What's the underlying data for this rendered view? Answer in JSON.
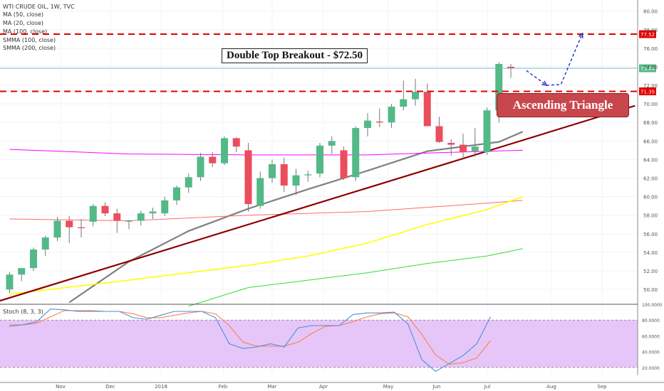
{
  "header": {
    "symbol": "WTI CRUDE OIL, 1W, TVC",
    "indicators": [
      "MA (50, close)",
      "MA (20, close)",
      "MA (100, close)",
      "SMMA (100, close)",
      "SMMA (200, close)"
    ]
  },
  "annotations": {
    "breakout": "Double Top Breakout - $72.50",
    "pattern": "Ascending Triangle"
  },
  "colors": {
    "up": "#53b987",
    "down": "#eb4d5c",
    "resistance": "#e00000",
    "trendline": "#8b0000",
    "projection": "#1f2fbf",
    "stoch_band": "#e6c6f8",
    "ma50": "#ff00ff",
    "ma20": "#808080",
    "ma100": "#ff6b6b",
    "smma100": "#ffff00",
    "smma200": "#33dd33",
    "stoch_k": "#4a90d9",
    "stoch_d": "#ff7f50"
  },
  "chart_data": {
    "type": "candlestick",
    "title": "WTI CRUDE OIL, 1W, TVC",
    "y_ticks": [
      "80.00",
      "78.00",
      "76.00",
      "74.00",
      "72.00",
      "70.00",
      "68.00",
      "66.00",
      "64.00",
      "62.00",
      "60.00",
      "58.00",
      "56.00",
      "54.00",
      "52.00",
      "50.00"
    ],
    "ylim": [
      48.4,
      81.2
    ],
    "x_labels": [
      "Nov",
      "Dec",
      "2018",
      "Feb",
      "Mar",
      "Apr",
      "May",
      "Jun",
      "Jul",
      "Aug",
      "Sep"
    ],
    "price_labels": [
      "77.52",
      "73.84",
      "71.35"
    ],
    "resistance_levels": [
      77.52,
      71.35
    ],
    "last_price": 73.84,
    "candles": [
      {
        "o": 50.0,
        "h": 51.9,
        "l": 49.6,
        "c": 51.6
      },
      {
        "o": 51.6,
        "h": 52.1,
        "l": 50.9,
        "c": 52.3
      },
      {
        "o": 52.3,
        "h": 54.5,
        "l": 52.0,
        "c": 54.3
      },
      {
        "o": 54.3,
        "h": 55.8,
        "l": 53.6,
        "c": 55.6
      },
      {
        "o": 55.6,
        "h": 57.8,
        "l": 55.2,
        "c": 57.4
      },
      {
        "o": 57.4,
        "h": 57.9,
        "l": 55.0,
        "c": 56.7
      },
      {
        "o": 56.7,
        "h": 57.6,
        "l": 55.6,
        "c": 56.6
      },
      {
        "o": 57.3,
        "h": 59.2,
        "l": 56.8,
        "c": 59.0
      },
      {
        "o": 59.0,
        "h": 59.4,
        "l": 57.9,
        "c": 58.2
      },
      {
        "o": 58.2,
        "h": 58.7,
        "l": 56.1,
        "c": 57.4
      },
      {
        "o": 57.3,
        "h": 57.5,
        "l": 56.5,
        "c": 57.4
      },
      {
        "o": 57.4,
        "h": 58.5,
        "l": 56.9,
        "c": 58.2
      },
      {
        "o": 58.2,
        "h": 58.8,
        "l": 57.6,
        "c": 58.4
      },
      {
        "o": 58.2,
        "h": 60.0,
        "l": 57.9,
        "c": 59.6
      },
      {
        "o": 59.6,
        "h": 61.2,
        "l": 59.1,
        "c": 61.0
      },
      {
        "o": 61.0,
        "h": 62.5,
        "l": 60.4,
        "c": 62.1
      },
      {
        "o": 62.1,
        "h": 64.7,
        "l": 61.7,
        "c": 64.3
      },
      {
        "o": 64.3,
        "h": 64.8,
        "l": 63.2,
        "c": 63.6
      },
      {
        "o": 63.6,
        "h": 66.5,
        "l": 63.4,
        "c": 66.3
      },
      {
        "o": 66.3,
        "h": 66.4,
        "l": 64.8,
        "c": 65.4
      },
      {
        "o": 65.0,
        "h": 65.8,
        "l": 58.4,
        "c": 59.2
      },
      {
        "o": 59.0,
        "h": 62.7,
        "l": 58.7,
        "c": 62.0
      },
      {
        "o": 62.0,
        "h": 64.0,
        "l": 61.5,
        "c": 63.5
      },
      {
        "o": 63.5,
        "h": 64.2,
        "l": 60.5,
        "c": 61.2
      },
      {
        "o": 61.2,
        "h": 63.0,
        "l": 60.2,
        "c": 62.3
      },
      {
        "o": 62.3,
        "h": 62.8,
        "l": 61.6,
        "c": 62.4
      },
      {
        "o": 62.5,
        "h": 65.8,
        "l": 62.1,
        "c": 65.5
      },
      {
        "o": 65.5,
        "h": 66.5,
        "l": 64.6,
        "c": 66.0
      },
      {
        "o": 65.0,
        "h": 65.4,
        "l": 61.8,
        "c": 62.0
      },
      {
        "o": 62.1,
        "h": 67.6,
        "l": 61.7,
        "c": 67.4
      },
      {
        "o": 67.4,
        "h": 69.0,
        "l": 66.5,
        "c": 68.2
      },
      {
        "o": 68.1,
        "h": 69.5,
        "l": 67.5,
        "c": 68.0
      },
      {
        "o": 68.0,
        "h": 70.0,
        "l": 67.4,
        "c": 69.7
      },
      {
        "o": 69.7,
        "h": 72.5,
        "l": 69.3,
        "c": 70.5
      },
      {
        "o": 70.5,
        "h": 72.7,
        "l": 69.8,
        "c": 71.3
      },
      {
        "o": 71.3,
        "h": 72.2,
        "l": 67.7,
        "c": 67.6
      },
      {
        "o": 67.6,
        "h": 68.6,
        "l": 65.8,
        "c": 65.9
      },
      {
        "o": 65.8,
        "h": 66.2,
        "l": 64.4,
        "c": 65.6
      },
      {
        "o": 65.6,
        "h": 66.8,
        "l": 64.1,
        "c": 64.8
      },
      {
        "o": 64.9,
        "h": 67.4,
        "l": 64.3,
        "c": 65.4
      },
      {
        "o": 64.8,
        "h": 69.6,
        "l": 64.5,
        "c": 69.3
      },
      {
        "o": 69.3,
        "h": 74.5,
        "l": 68.0,
        "c": 74.3
      },
      {
        "o": 74.0,
        "h": 74.3,
        "l": 72.8,
        "c": 73.84
      }
    ],
    "moving_averages": [
      {
        "name": "MA (20, close)",
        "x": [
          5,
          10,
          15,
          20,
          25,
          30,
          35,
          38,
          41,
          43
        ],
        "y": [
          48.6,
          53.0,
          56.3,
          58.7,
          60.8,
          62.8,
          64.9,
          65.4,
          65.9,
          67.0
        ]
      },
      {
        "name": "MA (50, close)",
        "x": [
          0,
          10,
          20,
          30,
          40,
          43
        ],
        "y": [
          65.1,
          64.6,
          64.5,
          64.5,
          64.9,
          65.0
        ]
      },
      {
        "name": "MA (100, close)",
        "x": [
          0,
          10,
          20,
          30,
          40,
          43
        ],
        "y": [
          57.6,
          57.4,
          58.0,
          58.4,
          59.3,
          59.6
        ]
      },
      {
        "name": "SMMA (100, close)",
        "x": [
          0,
          10,
          20,
          25,
          30,
          35,
          40,
          43
        ],
        "y": [
          49.5,
          51.0,
          52.6,
          53.6,
          55.0,
          57.0,
          58.6,
          60.0
        ]
      },
      {
        "name": "SMMA (200, close)",
        "x": [
          15,
          20,
          25,
          30,
          35,
          40,
          43
        ],
        "y": [
          48.2,
          50.2,
          51.0,
          51.8,
          52.8,
          53.6,
          54.4
        ]
      }
    ],
    "stochastic": {
      "label": "Stoch (8, 3, 3)",
      "ylim": [
        10,
        100
      ],
      "y_ticks": [
        "100.0000",
        "80.0000",
        "60.0000",
        "40.0000",
        "20.0000"
      ],
      "band": [
        20,
        80
      ],
      "k": [
        72,
        74,
        78,
        94,
        93,
        91,
        91,
        91,
        91,
        83,
        81,
        86,
        91,
        91,
        91,
        83,
        50,
        44,
        46,
        50,
        46,
        70,
        73,
        73,
        73,
        87,
        89,
        89,
        90,
        75,
        30,
        15,
        25,
        35,
        50,
        84
      ],
      "d": [
        74,
        74,
        76,
        84,
        92,
        92,
        92,
        91,
        91,
        88,
        83,
        83,
        86,
        89,
        91,
        88,
        73,
        52,
        47,
        47,
        47,
        52,
        63,
        72,
        73,
        78,
        84,
        88,
        89,
        84,
        62,
        36,
        24,
        26,
        32,
        54
      ]
    },
    "trendline": {
      "x": [
        -1,
        52.4
      ],
      "y": [
        48.7,
        69.8
      ]
    },
    "projection": {
      "x": [
        43.3,
        45.0,
        46.2,
        48.0
      ],
      "y": [
        73.6,
        72.0,
        72.1,
        77.6
      ]
    }
  }
}
